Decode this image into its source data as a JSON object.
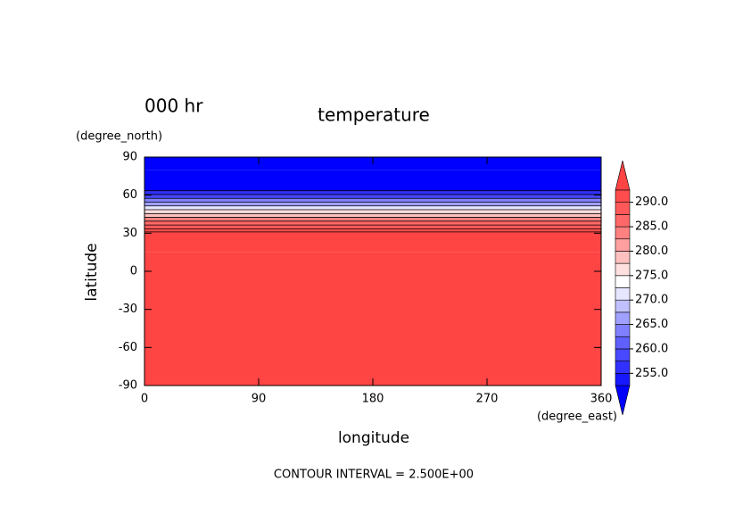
{
  "chart_data": {
    "type": "contour",
    "time_label": "000 hr",
    "title": "temperature",
    "xlabel": "longitude",
    "xunit": "(degree_east)",
    "ylabel": "latitude",
    "yunit": "(degree_north)",
    "footnote": "CONTOUR INTERVAL = 2.500E+00",
    "xlim": [
      0,
      360
    ],
    "xticks": [
      0,
      90,
      180,
      270,
      360
    ],
    "ylim": [
      -90,
      90
    ],
    "yticks": [
      -90,
      -60,
      -30,
      0,
      30,
      60,
      90
    ],
    "latitudes": [
      -90,
      0,
      30,
      32,
      35,
      38,
      41,
      44,
      47,
      50,
      53,
      56,
      59,
      62,
      65,
      70,
      90
    ],
    "values": [
      295,
      295,
      295,
      292,
      289,
      286,
      283,
      279,
      275,
      271,
      267,
      263,
      259,
      255,
      251,
      250,
      250
    ],
    "colorbar": {
      "levels": [
        252.5,
        255,
        257.5,
        260,
        262.5,
        265,
        267.5,
        270,
        272.5,
        275,
        277.5,
        280,
        282.5,
        285,
        287.5,
        290,
        292.5
      ],
      "ticks": [
        {
          "value": 255,
          "label": "255.0"
        },
        {
          "value": 260,
          "label": "260.0"
        },
        {
          "value": 265,
          "label": "265.0"
        },
        {
          "value": 270,
          "label": "270.0"
        },
        {
          "value": 275,
          "label": "275.0"
        },
        {
          "value": 280,
          "label": "280.0"
        },
        {
          "value": 285,
          "label": "285.0"
        },
        {
          "value": 290,
          "label": "290.0"
        }
      ],
      "colors": [
        "#0000ff",
        "#1818ff",
        "#3030ff",
        "#4848ff",
        "#6060ff",
        "#8080ff",
        "#a0a0ff",
        "#c0c0ff",
        "#e6e6ff",
        "#ffffff",
        "#ffe0e0",
        "#ffc0c0",
        "#ffa0a0",
        "#ff8080",
        "#ff6868",
        "#ff5858",
        "#ff4c4c",
        "#ff4444"
      ]
    }
  }
}
